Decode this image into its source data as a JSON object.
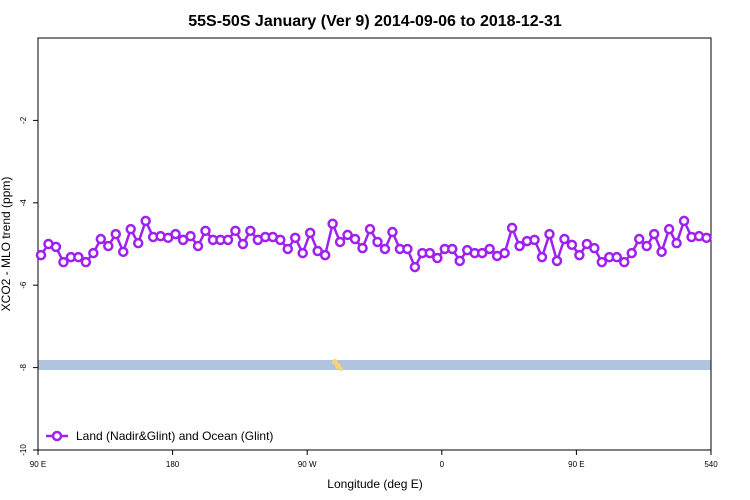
{
  "chart_data": {
    "type": "line",
    "title": "55S-50S January (Ver 9)   2014-09-06 to 2018-12-31",
    "xlabel": "Longitude (deg E)",
    "ylabel": "XCO2 - MLO trend (ppm)",
    "x": [
      92,
      97,
      102,
      107,
      112,
      117,
      122,
      127,
      132,
      137,
      142,
      147,
      152,
      157,
      162,
      167,
      172,
      177,
      182,
      187,
      192,
      197,
      202,
      207,
      212,
      217,
      222,
      227,
      232,
      237,
      242,
      247,
      252,
      257,
      262,
      267,
      272,
      277,
      282,
      287,
      292,
      297,
      302,
      307,
      312,
      317,
      322,
      327,
      332,
      337,
      342,
      347,
      352,
      357,
      362,
      367,
      372,
      377,
      382,
      387,
      392,
      397,
      402,
      407,
      412,
      417,
      422,
      427,
      432,
      437,
      442,
      447,
      452,
      457,
      462,
      467,
      472,
      477,
      482,
      487,
      492,
      497,
      502,
      507,
      512,
      517,
      522,
      527,
      532,
      537
    ],
    "series": [
      {
        "name": "Land (Nadir&Glint) and Ocean (Glint)",
        "color": "#a020f0",
        "values": [
          -5.27,
          -5.0,
          -5.07,
          -5.44,
          -5.32,
          -5.32,
          -5.44,
          -5.22,
          -4.88,
          -5.05,
          -4.76,
          -5.19,
          -4.64,
          -4.98,
          -4.44,
          -4.83,
          -4.81,
          -4.85,
          -4.76,
          -4.9,
          -4.81,
          -5.05,
          -4.68,
          -4.9,
          -4.9,
          -4.9,
          -4.68,
          -5.0,
          -4.68,
          -4.9,
          -4.83,
          -4.83,
          -4.9,
          -5.12,
          -4.85,
          -5.22,
          -4.73,
          -5.17,
          -5.27,
          -4.51,
          -4.95,
          -4.78,
          -4.88,
          -5.1,
          -4.64,
          -4.95,
          -5.12,
          -4.71,
          -5.12,
          -5.12,
          -5.56,
          -5.22,
          -5.22,
          -5.34,
          -5.12,
          -5.12,
          -5.41,
          -5.15,
          -5.22,
          -5.22,
          -5.12,
          -5.29,
          -5.22,
          -4.61,
          -5.05,
          -4.93,
          -4.9,
          -5.32,
          -4.76,
          -5.41,
          -4.88,
          -5.02,
          -5.27,
          -5.0,
          -5.1,
          -5.44,
          -5.32,
          -5.32,
          -5.44,
          -5.22,
          -4.88,
          -5.05,
          -4.76,
          -5.19,
          -4.64,
          -4.98,
          -4.44,
          -4.83,
          -4.81,
          -4.85
        ]
      }
    ],
    "xlim": [
      90,
      540
    ],
    "xticks": [
      {
        "value": 90,
        "label": "90 E"
      },
      180,
      {
        "value": 270,
        "label": "90 W"
      },
      {
        "value": 360,
        "label": "0"
      },
      {
        "value": 450,
        "label": "90 E"
      },
      540
    ],
    "ylim": [
      -10,
      0
    ],
    "yticks": [
      -10,
      -8,
      -6,
      -4,
      -2
    ],
    "grid": false,
    "legend": "bottomleft"
  }
}
